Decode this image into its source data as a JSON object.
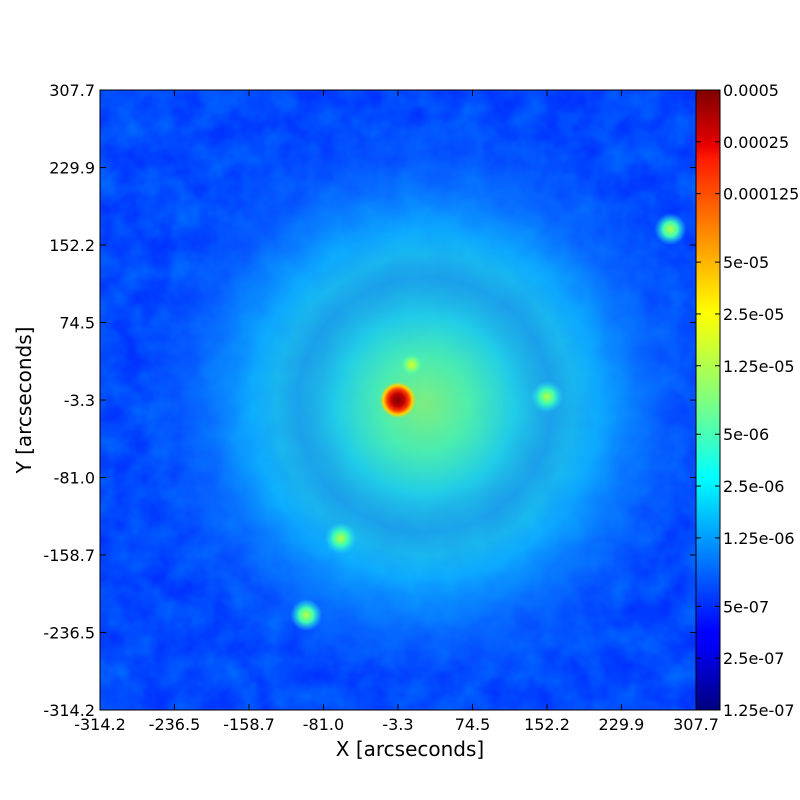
{
  "chart_data": {
    "type": "heatmap",
    "title": "",
    "xlabel": "X [arcseconds]",
    "ylabel": "Y [arcseconds]",
    "xlim": [
      -314.2,
      307.7
    ],
    "ylim": [
      -314.2,
      307.7
    ],
    "x_ticks": [
      "-314.2",
      "-236.5",
      "-158.7",
      "-81.0",
      "-3.3",
      "74.5",
      "152.2",
      "229.9",
      "307.7"
    ],
    "y_ticks": [
      "-314.2",
      "-236.5",
      "-158.7",
      "-81.0",
      "-3.3",
      "74.5",
      "152.2",
      "229.9",
      "307.7"
    ],
    "colormap": "jet",
    "color_scale": "log",
    "colorbar": {
      "range": [
        1.25e-07,
        0.0005
      ],
      "ticks": [
        "1.25e-07",
        "2.5e-07",
        "5e-07",
        "1.25e-06",
        "2.5e-06",
        "5e-06",
        "1.25e-05",
        "2.5e-05",
        "5e-05",
        "0.000125",
        "0.00025",
        "0.0005"
      ],
      "tick_values": [
        1.25e-07,
        2.5e-07,
        5e-07,
        1.25e-06,
        2.5e-06,
        5e-06,
        1.25e-05,
        2.5e-05,
        5e-05,
        0.000125,
        0.00025,
        0.0005
      ]
    },
    "features": [
      {
        "x": -3.3,
        "y": -3.3,
        "value": 0.0005
      },
      {
        "x": 11.0,
        "y": 32.0,
        "value": 1.25e-05
      },
      {
        "x": -99.0,
        "y": -219.0,
        "value": 5e-06
      },
      {
        "x": -63.0,
        "y": -142.0,
        "value": 3e-06
      },
      {
        "x": 281.0,
        "y": 168.0,
        "value": 3e-06
      },
      {
        "x": 152.2,
        "y": 0.0,
        "value": 3e-06
      }
    ]
  }
}
